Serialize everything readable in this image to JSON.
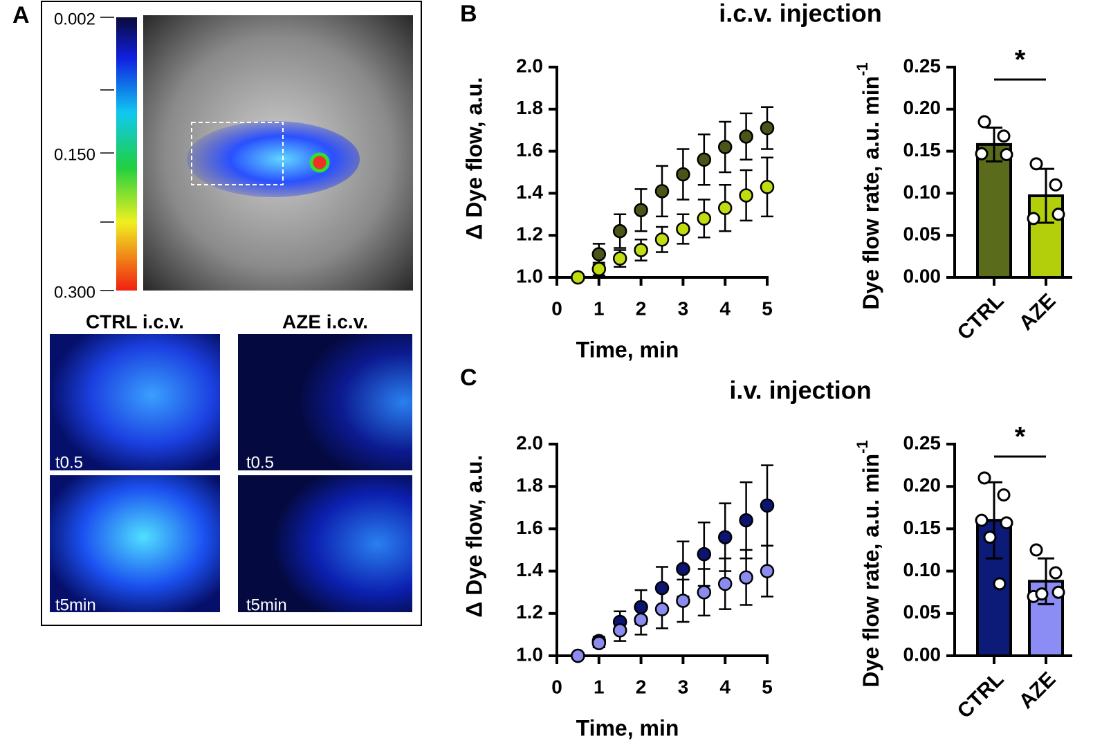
{
  "panel_labels": [
    "A",
    "B",
    "C"
  ],
  "panel_a": {
    "colorbar_ticks": [
      {
        "value": 0.002,
        "label": "0.002"
      },
      {
        "value": 0.15,
        "label": "0.150"
      },
      {
        "value": 0.3,
        "label": "0.300"
      }
    ],
    "groups": [
      "CTRL i.c.v.",
      "AZE i.c.v."
    ],
    "timepoints": [
      "t0.5",
      "t5min"
    ]
  },
  "chart_data": [
    {
      "type": "scatter",
      "title": "i.c.v. injection",
      "xlabel": "Time, min",
      "ylabel": "Δ Dye flow, a.u.",
      "x": [
        0.5,
        1,
        1.5,
        2,
        2.5,
        3,
        3.5,
        4,
        4.5,
        5
      ],
      "series": [
        {
          "color": "#4b5518",
          "values": [
            1.0,
            1.11,
            1.22,
            1.32,
            1.41,
            1.49,
            1.56,
            1.62,
            1.67,
            1.71
          ],
          "errors": [
            0,
            0.05,
            0.08,
            0.1,
            0.12,
            0.12,
            0.12,
            0.12,
            0.11,
            0.1
          ]
        },
        {
          "color": "#c2dc12",
          "values": [
            1.0,
            1.04,
            1.09,
            1.13,
            1.18,
            1.23,
            1.28,
            1.33,
            1.39,
            1.43
          ],
          "errors": [
            0,
            0.03,
            0.04,
            0.05,
            0.06,
            0.07,
            0.09,
            0.11,
            0.12,
            0.14
          ]
        }
      ],
      "xlim": [
        0,
        5
      ],
      "xticks": [
        0,
        1,
        2,
        3,
        4,
        5
      ],
      "ylim": [
        1,
        2
      ],
      "yticks": [
        {
          "value": 1,
          "label": "1.0"
        },
        1.2,
        1.4,
        1.6,
        1.8,
        {
          "value": 2,
          "label": "2.0"
        }
      ]
    },
    {
      "type": "bar",
      "ylabel": "Dye flow rate, a.u. min",
      "ylabel_sup": "-1",
      "annotation": "*",
      "categories": [
        "CTRL",
        "AZE"
      ],
      "values": [
        0.158,
        0.097
      ],
      "errors": [
        0.02,
        0.032
      ],
      "colors": [
        "#5b6b1c",
        "#b3cf0c"
      ],
      "points": [
        [
          0.185,
          0.168,
          0.147,
          0.146
        ],
        [
          0.135,
          0.11,
          0.07,
          0.075
        ]
      ],
      "ylim": [
        0,
        0.25
      ],
      "yticks": [
        {
          "value": 0,
          "label": "0.00"
        },
        0.05,
        {
          "value": 0.1,
          "label": "0.10"
        },
        0.15,
        {
          "value": 0.2,
          "label": "0.20"
        },
        0.25
      ]
    },
    {
      "type": "scatter",
      "title": "i.v. injection",
      "xlabel": "Time, min",
      "ylabel": "Δ Dye flow, a.u.",
      "x": [
        0.5,
        1,
        1.5,
        2,
        2.5,
        3,
        3.5,
        4,
        4.5,
        5
      ],
      "series": [
        {
          "color": "#0b1470",
          "values": [
            1.0,
            1.07,
            1.16,
            1.23,
            1.32,
            1.41,
            1.48,
            1.56,
            1.64,
            1.71
          ],
          "errors": [
            0,
            0.02,
            0.05,
            0.08,
            0.1,
            0.13,
            0.15,
            0.16,
            0.18,
            0.19
          ]
        },
        {
          "color": "#8c8cf0",
          "values": [
            1.0,
            1.06,
            1.12,
            1.17,
            1.22,
            1.26,
            1.3,
            1.34,
            1.37,
            1.4
          ],
          "errors": [
            0,
            0.02,
            0.05,
            0.07,
            0.09,
            0.1,
            0.11,
            0.12,
            0.13,
            0.12
          ]
        }
      ],
      "xlim": [
        0,
        5
      ],
      "xticks": [
        0,
        1,
        2,
        3,
        4,
        5
      ],
      "ylim": [
        1,
        2
      ],
      "yticks": [
        {
          "value": 1,
          "label": "1.0"
        },
        1.2,
        1.4,
        1.6,
        1.8,
        {
          "value": 2,
          "label": "2.0"
        }
      ]
    },
    {
      "type": "bar",
      "ylabel": "Dye flow rate, a.u. min",
      "ylabel_sup": "-1",
      "annotation": "*",
      "categories": [
        "CTRL",
        "AZE"
      ],
      "values": [
        0.16,
        0.088
      ],
      "errors": [
        0.045,
        0.027
      ],
      "colors": [
        "#0c1a78",
        "#8c8cf5"
      ],
      "points": [
        [
          0.21,
          0.19,
          0.16,
          0.157,
          0.14,
          0.085
        ],
        [
          0.125,
          0.098,
          0.07,
          0.075,
          0.073
        ]
      ],
      "ylim": [
        0,
        0.25
      ],
      "yticks": [
        {
          "value": 0,
          "label": "0.00"
        },
        0.05,
        {
          "value": 0.1,
          "label": "0.10"
        },
        0.15,
        {
          "value": 0.2,
          "label": "0.20"
        },
        0.25
      ]
    }
  ]
}
